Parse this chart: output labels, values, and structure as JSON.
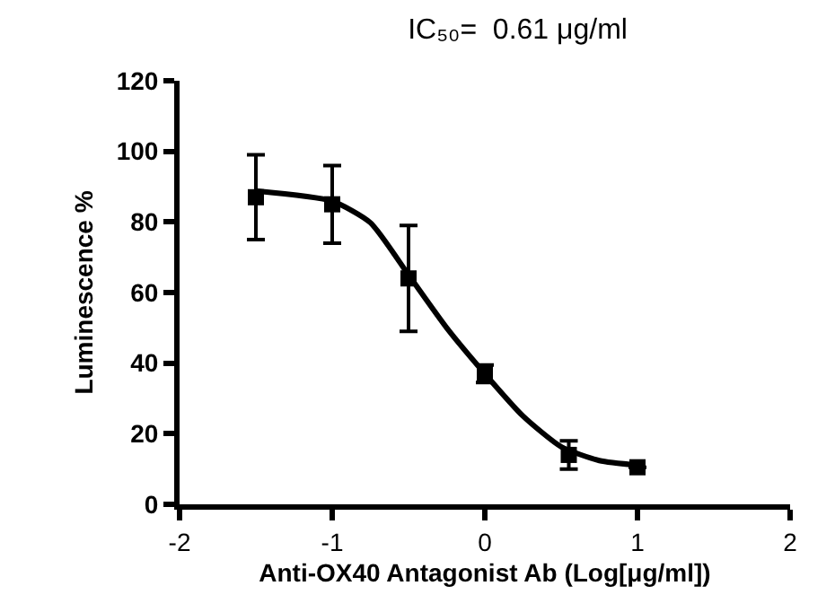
{
  "chart_data": {
    "type": "scatter",
    "title": "IC₅₀=  0.61 μg/ml",
    "xlabel": "Anti-OX40 Antagonist Ab (Log[μg/ml])",
    "ylabel": "Luminescence %",
    "xlim": [
      -2,
      2
    ],
    "xticks": [
      -2,
      -1,
      0,
      1,
      2
    ],
    "ylim": [
      0,
      120
    ],
    "yticks": [
      0,
      20,
      40,
      60,
      80,
      100,
      120
    ],
    "grid": false,
    "series": [
      {
        "color": "#000000",
        "marker": "square",
        "x": [
          -1.5,
          -1,
          -0.5,
          0,
          0.55,
          1
        ],
        "values": [
          87,
          85,
          64,
          37,
          14,
          10.5
        ],
        "errors": [
          12,
          11,
          15,
          2.5,
          4,
          null
        ]
      },
      {
        "type": "line",
        "color": "#000000",
        "marker": "none",
        "line_style": "solid",
        "x": [
          -1.5,
          -1,
          -0.75,
          -0.5,
          -0.25,
          0,
          0.25,
          0.5,
          0.75,
          1
        ],
        "values": [
          88.8,
          85.9,
          79.8,
          65,
          50,
          37,
          25,
          16.3,
          12.4,
          11.1
        ]
      }
    ]
  }
}
